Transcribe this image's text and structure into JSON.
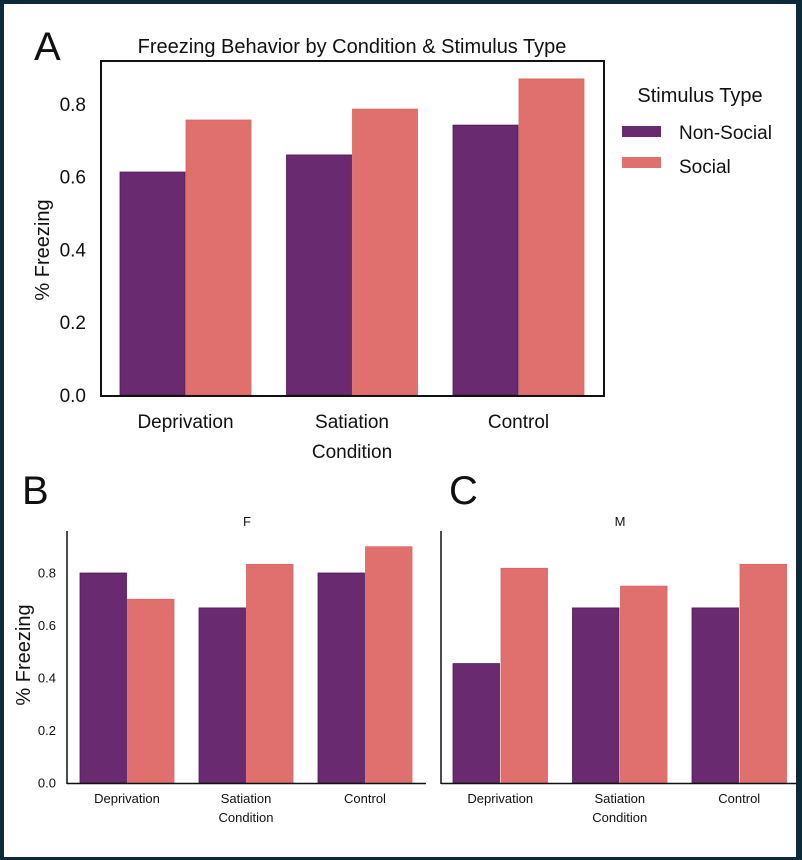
{
  "colors": {
    "non_social": "#6a2a70",
    "social": "#df706e",
    "border": "#0e2a38"
  },
  "panels": {
    "A": {
      "letter": "A"
    },
    "B": {
      "letter": "B"
    },
    "C": {
      "letter": "C"
    }
  },
  "legend": {
    "title": "Stimulus Type",
    "items": [
      {
        "label": "Non-Social",
        "color": "#6a2a70"
      },
      {
        "label": "Social",
        "color": "#df706e"
      }
    ]
  },
  "chart_data": [
    {
      "panel": "A",
      "type": "bar",
      "title": "Freezing Behavior by Condition & Stimulus Type",
      "xlabel": "Condition",
      "ylabel": "% Freezing",
      "categories": [
        "Deprivation",
        "Satiation",
        "Control"
      ],
      "ylim": [
        0,
        0.92
      ],
      "yticks": [
        0.0,
        0.2,
        0.4,
        0.6,
        0.8
      ],
      "ytick_labels": [
        "0.0",
        "0.2",
        "0.4",
        "0.6",
        "0.8"
      ],
      "series": [
        {
          "name": "Non-Social",
          "values": [
            0.613,
            0.66,
            0.742
          ]
        },
        {
          "name": "Social",
          "values": [
            0.756,
            0.786,
            0.869
          ]
        }
      ],
      "legend": "right",
      "grid": false
    },
    {
      "panel": "B",
      "type": "bar",
      "title": "F",
      "xlabel": "Condition",
      "ylabel": "% Freezing",
      "categories": [
        "Deprivation",
        "Satiation",
        "Control"
      ],
      "ylim": [
        0,
        0.96
      ],
      "yticks": [
        0.0,
        0.2,
        0.4,
        0.6,
        0.8
      ],
      "ytick_labels": [
        "0.0",
        "0.2",
        "0.4",
        "0.6",
        "0.8"
      ],
      "series": [
        {
          "name": "Non-Social",
          "values": [
            0.8,
            0.667,
            0.8
          ]
        },
        {
          "name": "Social",
          "values": [
            0.7,
            0.833,
            0.9
          ]
        }
      ],
      "grid": false
    },
    {
      "panel": "C",
      "type": "bar",
      "title": "M",
      "xlabel": "Condition",
      "ylabel": "",
      "categories": [
        "Deprivation",
        "Satiation",
        "Control"
      ],
      "ylim": [
        0,
        0.96
      ],
      "series": [
        {
          "name": "Non-Social",
          "values": [
            0.455,
            0.667,
            0.667
          ]
        },
        {
          "name": "Social",
          "values": [
            0.818,
            0.75,
            0.833
          ]
        }
      ],
      "grid": false
    }
  ]
}
